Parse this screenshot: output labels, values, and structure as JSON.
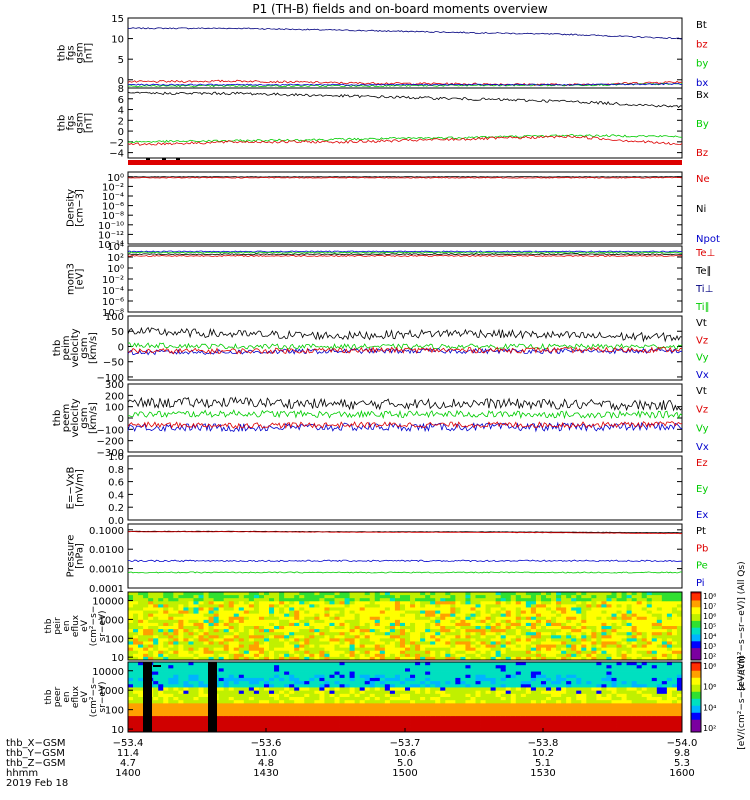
{
  "colors": {
    "black": "#000000",
    "red": "#dd0000",
    "green": "#00cc00",
    "blue": "#0000cc",
    "navy": "#000080"
  },
  "chart_data": {
    "type": "line",
    "title": "P1 (TH-B) fields and on-board moments overview",
    "panels": [
      {
        "id": "fgs_mag",
        "ylabel": [
          "thb",
          "fgs",
          "gsm",
          "[nT]"
        ],
        "ylim": [
          -2,
          15
        ],
        "ticks": [
          "15",
          "10",
          "5",
          "0"
        ],
        "tick_values": [
          15,
          10,
          5,
          0
        ],
        "legend": [
          {
            "text": "Bt",
            "color": "black"
          },
          {
            "text": "bz",
            "color": "red"
          },
          {
            "text": "by",
            "color": "green"
          },
          {
            "text": "bx",
            "color": "blue"
          }
        ],
        "series": [
          {
            "color": "navy",
            "base": [
              12.5,
              12.5,
              12,
              11.5,
              11,
              10
            ],
            "noise": 0.15
          },
          {
            "color": "red",
            "base": [
              -0.5,
              -0.3,
              -0.8,
              -1,
              -1.2,
              -0.5
            ],
            "noise": 0.25
          },
          {
            "color": "green",
            "base": [
              -1.5,
              -1.5,
              -1.5,
              -1.4,
              -1.3,
              -1
            ],
            "noise": 0.2
          },
          {
            "color": "blue",
            "base": [
              -1.2,
              -1.2,
              -1.2,
              -1.2,
              -1.2,
              -1
            ],
            "noise": 0.15
          }
        ]
      },
      {
        "id": "fgs_comp",
        "ylabel": [
          "thb",
          "fgs",
          "gsm",
          "[nT]"
        ],
        "ylim": [
          -5,
          8
        ],
        "ticks": [
          "8",
          "6",
          "4",
          "2",
          "0",
          "−2",
          "−4"
        ],
        "tick_values": [
          8,
          6,
          4,
          2,
          0,
          -2,
          -4
        ],
        "legend": [
          {
            "text": "Bx",
            "color": "black"
          },
          {
            "text": "By",
            "color": "green"
          },
          {
            "text": "Bz",
            "color": "red"
          }
        ],
        "series": [
          {
            "color": "black",
            "base": [
              7,
              7,
              6.5,
              6,
              5.5,
              4.5
            ],
            "noise": 0.25
          },
          {
            "color": "green",
            "base": [
              -2,
              -1.8,
              -1.5,
              -1.2,
              -0.8,
              -1
            ],
            "noise": 0.2
          },
          {
            "color": "red",
            "base": [
              -2.5,
              -2,
              -2,
              -1.5,
              -1,
              -2.5
            ],
            "noise": 0.25
          }
        ]
      },
      {
        "id": "density",
        "ylabel": [
          "Density",
          "[cm−3]"
        ],
        "ylim": [
          -14,
          1
        ],
        "log": true,
        "ticks": [
          "10⁰",
          "10⁻²",
          "10⁻⁴",
          "10⁻⁶",
          "10⁻⁸",
          "10⁻¹⁰",
          "10⁻¹²",
          "10⁻¹⁴"
        ],
        "tick_values": [
          0,
          -2,
          -4,
          -6,
          -8,
          -10,
          -12,
          -14
        ],
        "legend": [
          {
            "text": "Ne",
            "color": "red"
          },
          {
            "text": "Ni",
            "color": "black"
          },
          {
            "text": "Npot",
            "color": "blue"
          }
        ],
        "series": [
          {
            "color": "black",
            "base": [
              0,
              0,
              0,
              0,
              0,
              0
            ],
            "noise": 0.05
          },
          {
            "color": "red",
            "base": [
              -0.2,
              -0.2,
              -0.2,
              -0.2,
              -0.2,
              -0.2
            ],
            "noise": 0.08
          }
        ]
      },
      {
        "id": "temp",
        "ylabel": [
          "mom3",
          "[eV]"
        ],
        "ylim": [
          -8,
          4
        ],
        "log": true,
        "ticks": [
          "10⁴",
          "10²",
          "10⁰",
          "10⁻²",
          "10⁻⁴",
          "10⁻⁶",
          "10⁻⁸"
        ],
        "tick_values": [
          4,
          2,
          0,
          -2,
          -4,
          -6,
          -8
        ],
        "legend": [
          {
            "text": "Te⊥",
            "color": "red"
          },
          {
            "text": "Te∥",
            "color": "black"
          },
          {
            "text": "Ti⊥",
            "color": "navy"
          },
          {
            "text": "Ti∥",
            "color": "green"
          }
        ],
        "series": [
          {
            "color": "blue",
            "base": [
              3,
              3,
              3,
              3,
              3,
              3
            ],
            "noise": 0.1
          },
          {
            "color": "green",
            "base": [
              2.8,
              2.8,
              2.8,
              2.8,
              2.8,
              2.8
            ],
            "noise": 0.1
          },
          {
            "color": "black",
            "base": [
              2.5,
              2.5,
              2.5,
              2.5,
              2.5,
              2.5
            ],
            "noise": 0.1
          },
          {
            "color": "red",
            "base": [
              2.2,
              2.2,
              2.2,
              2.2,
              2.2,
              2.2
            ],
            "noise": 0.1
          }
        ]
      },
      {
        "id": "peim_vel",
        "ylabel": [
          "thb",
          "peim",
          "velocity",
          "gsm",
          "[km/s]"
        ],
        "ylim": [
          -110,
          100
        ],
        "ticks": [
          "100",
          "50",
          "0",
          "−50",
          "−100"
        ],
        "tick_values": [
          100,
          50,
          0,
          -50,
          -100
        ],
        "legend": [
          {
            "text": "Vt",
            "color": "black"
          },
          {
            "text": "Vz",
            "color": "red"
          },
          {
            "text": "Vy",
            "color": "green"
          },
          {
            "text": "Vx",
            "color": "blue"
          }
        ],
        "series": [
          {
            "color": "black",
            "base": [
              50,
              40,
              35,
              45,
              35,
              30
            ],
            "noise": 14
          },
          {
            "color": "green",
            "base": [
              5,
              0,
              0,
              0,
              0,
              0
            ],
            "noise": 8
          },
          {
            "color": "blue",
            "base": [
              -20,
              -18,
              -15,
              -15,
              -15,
              -15
            ],
            "noise": 8
          },
          {
            "color": "red",
            "base": [
              -15,
              -15,
              -12,
              -12,
              -12,
              -10
            ],
            "noise": 9
          }
        ]
      },
      {
        "id": "peem_vel",
        "ylabel": [
          "thb",
          "peem",
          "velocity",
          "gsm",
          "[km/s]"
        ],
        "ylim": [
          -300,
          300
        ],
        "ticks": [
          "300",
          "200",
          "100",
          "0",
          "−100",
          "−200",
          "−300"
        ],
        "tick_values": [
          300,
          200,
          100,
          0,
          -100,
          -200,
          -300
        ],
        "legend": [
          {
            "text": "Vt",
            "color": "black"
          },
          {
            "text": "Vz",
            "color": "red"
          },
          {
            "text": "Vy",
            "color": "green"
          },
          {
            "text": "Vx",
            "color": "blue"
          }
        ],
        "series": [
          {
            "color": "black",
            "base": [
              130,
              140,
              120,
              130,
              120,
              110
            ],
            "noise": 45
          },
          {
            "color": "green",
            "base": [
              30,
              40,
              30,
              35,
              30,
              30
            ],
            "noise": 30
          },
          {
            "color": "blue",
            "base": [
              -80,
              -85,
              -80,
              -80,
              -80,
              -75
            ],
            "noise": 35
          },
          {
            "color": "red",
            "base": [
              -60,
              -65,
              -60,
              -60,
              -60,
              -55
            ],
            "noise": 25
          }
        ]
      },
      {
        "id": "efield",
        "ylabel": [
          "E=−VxB",
          "[mV/m]"
        ],
        "ylim": [
          0,
          1
        ],
        "ticks": [
          "1.0",
          "0.8",
          "0.6",
          "0.4",
          "0.2",
          "0.0"
        ],
        "tick_values": [
          1,
          0.8,
          0.6,
          0.4,
          0.2,
          0
        ],
        "legend": [
          {
            "text": "Ez",
            "color": "red"
          },
          {
            "text": "Ey",
            "color": "green"
          },
          {
            "text": "Ex",
            "color": "blue"
          }
        ],
        "series": []
      },
      {
        "id": "pressure",
        "ylabel": [
          "Pressure",
          "[nPa]"
        ],
        "ylim": [
          -4,
          -0.7
        ],
        "log": true,
        "ticks": [
          "0.1000",
          "0.0100",
          "0.0010",
          "0.0001"
        ],
        "tick_values": [
          -1,
          -2,
          -3,
          -4
        ],
        "legend": [
          {
            "text": "Pt",
            "color": "black"
          },
          {
            "text": "Pb",
            "color": "red"
          },
          {
            "text": "Pe",
            "color": "green"
          },
          {
            "text": "Pi",
            "color": "blue"
          }
        ],
        "series": [
          {
            "color": "black",
            "base": [
              -1.08,
              -1.08,
              -1.1,
              -1.1,
              -1.12,
              -1.15
            ],
            "noise": 0.01
          },
          {
            "color": "red",
            "base": [
              -1.1,
              -1.1,
              -1.12,
              -1.13,
              -1.15,
              -1.2
            ],
            "noise": 0.01
          },
          {
            "color": "blue",
            "base": [
              -2.6,
              -2.6,
              -2.6,
              -2.6,
              -2.6,
              -2.6
            ],
            "noise": 0.04
          },
          {
            "color": "green",
            "base": [
              -3.2,
              -3.2,
              -3.2,
              -3.2,
              -3.2,
              -3.2
            ],
            "noise": 0.03
          }
        ]
      }
    ],
    "spectrograms": [
      {
        "id": "peir_en_eflux",
        "ylabel": [
          "thb",
          "peir",
          "en",
          "eflux",
          "eV",
          "(cm²−s−",
          "sr−eV)"
        ],
        "ticks": [
          "10000",
          "1000",
          "100",
          "10"
        ],
        "tick_values": [
          10000,
          1000,
          100,
          10
        ],
        "colorbar_ticks": [
          "10⁸",
          "10⁷",
          "10⁶",
          "10⁵",
          "10⁴",
          "10³",
          "10²"
        ],
        "colorbar_label": "[eV/(cm²−s−sr−eV)] (All Qs)"
      },
      {
        "id": "peer_en_eflux",
        "ylabel": [
          "thb",
          "peer",
          "en",
          "eflux",
          "eV",
          "(cm²−s−",
          "sr−eV)"
        ],
        "ticks": [
          "10000",
          "1000",
          "100",
          "10"
        ],
        "tick_values": [
          10000,
          1000,
          100,
          10
        ],
        "colorbar_ticks": [
          "10⁸",
          "10⁶",
          "10⁴",
          "10²"
        ],
        "colorbar_label": "[eV/(cm²−s−sr−eV)]"
      }
    ],
    "x_axis": {
      "rows": [
        {
          "label": "thb_X−GSM",
          "values": [
            "−53.4",
            "−53.6",
            "−53.7",
            "−53.8",
            "−54.0"
          ]
        },
        {
          "label": "thb_Y−GSM",
          "values": [
            "11.4",
            "11.0",
            "10.6",
            "10.2",
            "9.8"
          ]
        },
        {
          "label": "thb_Z−GSM",
          "values": [
            "4.7",
            "4.8",
            "5.0",
            "5.1",
            "5.3"
          ]
        },
        {
          "label": "hhmm",
          "values": [
            "1400",
            "1430",
            "1500",
            "1530",
            "1600"
          ]
        }
      ],
      "date": "2019 Feb 18"
    }
  }
}
